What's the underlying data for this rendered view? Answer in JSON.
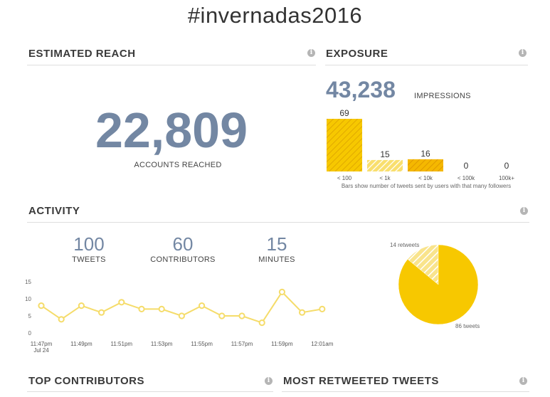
{
  "page": {
    "hashtag": "#invernadas2016",
    "info_glyph": "i"
  },
  "reach": {
    "heading": "ESTIMATED REACH",
    "value": "22,809",
    "caption": "ACCOUNTS REACHED"
  },
  "exposure": {
    "heading": "EXPOSURE",
    "impressions": "43,238",
    "impressions_label": "IMPRESSIONS",
    "note": "Bars show number of tweets sent by users with that many followers"
  },
  "activity": {
    "heading": "ACTIVITY",
    "stats": [
      {
        "value": "100",
        "label": "TWEETS"
      },
      {
        "value": "60",
        "label": "CONTRIBUTORS"
      },
      {
        "value": "15",
        "label": "MINUTES"
      }
    ]
  },
  "bottom": {
    "top_contributors": "TOP CONTRIBUTORS",
    "most_retweeted": "MOST RETWEETED TWEETS"
  },
  "colors": {
    "accent": "#f7c800",
    "accent_light": "#f8e08a",
    "number_blue": "#7387a3",
    "line": "#f5dc6a"
  },
  "chart_data": [
    {
      "type": "bar",
      "categories": [
        "< 100",
        "< 1k",
        "< 10k",
        "< 100k",
        "100k+"
      ],
      "values": [
        69,
        15,
        16,
        0,
        0
      ],
      "ylim": [
        0,
        69
      ]
    },
    {
      "type": "line",
      "x": [
        "11:47pm",
        "11:48pm",
        "11:49pm",
        "11:50pm",
        "11:51pm",
        "11:52pm",
        "11:53pm",
        "11:54pm",
        "11:55pm",
        "11:56pm",
        "11:57pm",
        "11:58pm",
        "11:59pm",
        "12:00am",
        "12:01am"
      ],
      "values": [
        8,
        4,
        8,
        6,
        9,
        7,
        7,
        5,
        8,
        5,
        5,
        3,
        12,
        6,
        7
      ],
      "tick_labels": [
        "11:47pm",
        "11:49pm",
        "11:51pm",
        "11:53pm",
        "11:55pm",
        "11:57pm",
        "11:59pm",
        "12:01am"
      ],
      "sub_tick_label": "Jul 24",
      "yticks": [
        0,
        5,
        10,
        15
      ],
      "ylim": [
        0,
        15
      ]
    },
    {
      "type": "pie",
      "slices": [
        {
          "label": "14 retweets",
          "value": 14
        },
        {
          "label": "86 tweets",
          "value": 86
        }
      ]
    }
  ]
}
